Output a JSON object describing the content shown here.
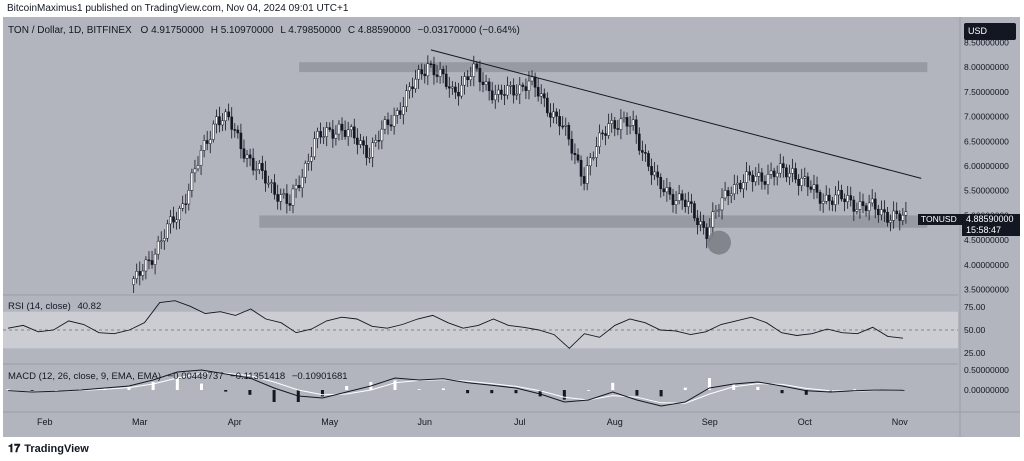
{
  "header": {
    "published": "BitcoinMaximus1 published on TradingView.com, Nov 04, 2024 09:01 UTC+1"
  },
  "symbol": {
    "name": "TON / Dollar, 1D, BITFINEX",
    "open": "O 4.91750000",
    "high": "H 5.10970000",
    "low": "L 4.79850000",
    "close": "C 4.88590000",
    "change": "−0.03170000 (−0.64%)"
  },
  "currency_button": "USD",
  "last_price": {
    "ticker": "TONUSD",
    "price": "4.88590000",
    "countdown": "15:58:47"
  },
  "footer": {
    "brand": "TradingView"
  },
  "colors": {
    "up": "#ffffff",
    "down": "#131722",
    "panel": "#b2b5be",
    "zone": "#8f9299",
    "text": "#131722"
  },
  "chart_data": [
    {
      "type": "candlestick",
      "x_labels": [
        "Feb",
        "Mar",
        "Apr",
        "May",
        "Jun",
        "Jul",
        "Aug",
        "Sep",
        "Oct",
        "Nov"
      ],
      "y_ticks": [
        "8.50000000",
        "8.00000000",
        "7.50000000",
        "7.00000000",
        "6.50000000",
        "6.00000000",
        "5.50000000",
        "5.00000000",
        "4.50000000",
        "4.00000000",
        "3.50000000"
      ],
      "ylim": [
        3.45,
        8.55
      ],
      "approx_closes": [
        {
          "month": "Mar",
          "x_day": 41,
          "value": 3.6
        },
        {
          "month": "Mar",
          "x_day": 49,
          "value": 4.4
        },
        {
          "month": "Mar",
          "x_day": 56,
          "value": 5.1
        },
        {
          "month": "Apr",
          "x_day": 68,
          "value": 7.0
        },
        {
          "month": "Apr",
          "x_day": 72,
          "value": 6.9
        },
        {
          "month": "Apr",
          "x_day": 80,
          "value": 6.0
        },
        {
          "month": "May",
          "x_day": 92,
          "value": 5.2
        },
        {
          "month": "May",
          "x_day": 100,
          "value": 6.5
        },
        {
          "month": "May",
          "x_day": 108,
          "value": 6.8
        },
        {
          "month": "May",
          "x_day": 118,
          "value": 6.3
        },
        {
          "month": "Jun",
          "x_day": 128,
          "value": 7.2
        },
        {
          "month": "Jun",
          "x_day": 137,
          "value": 8.1
        },
        {
          "month": "Jun",
          "x_day": 145,
          "value": 7.5
        },
        {
          "month": "Jul",
          "x_day": 152,
          "value": 7.9
        },
        {
          "month": "Jul",
          "x_day": 160,
          "value": 7.4
        },
        {
          "month": "Jul",
          "x_day": 170,
          "value": 7.7
        },
        {
          "month": "Jul",
          "x_day": 180,
          "value": 6.9
        },
        {
          "month": "Aug",
          "x_day": 188,
          "value": 5.8
        },
        {
          "month": "Aug",
          "x_day": 196,
          "value": 6.9
        },
        {
          "month": "Aug",
          "x_day": 204,
          "value": 6.8
        },
        {
          "month": "Aug",
          "x_day": 212,
          "value": 5.6
        },
        {
          "month": "Aug",
          "x_day": 220,
          "value": 5.3
        },
        {
          "month": "Sep",
          "x_day": 228,
          "value": 4.7
        },
        {
          "month": "Sep",
          "x_day": 236,
          "value": 5.6
        },
        {
          "month": "Sep",
          "x_day": 246,
          "value": 5.8
        },
        {
          "month": "Sep",
          "x_day": 256,
          "value": 5.9
        },
        {
          "month": "Oct",
          "x_day": 264,
          "value": 5.4
        },
        {
          "month": "Oct",
          "x_day": 274,
          "value": 5.3
        },
        {
          "month": "Oct",
          "x_day": 284,
          "value": 5.1
        },
        {
          "month": "Nov",
          "x_day": 293,
          "value": 4.9
        }
      ],
      "annotations": [
        {
          "type": "zone",
          "from": 7.9,
          "to": 8.1
        },
        {
          "type": "zone",
          "from": 4.75,
          "to": 5.0
        },
        {
          "type": "trendline",
          "from": {
            "x_day": 138,
            "value": 8.35
          },
          "to": {
            "x_day": 298,
            "value": 5.75
          }
        },
        {
          "type": "circle",
          "x_day": 232,
          "value": 4.45
        }
      ]
    },
    {
      "type": "line",
      "title": "RSI (14, close)",
      "last_value": "40.82",
      "y_ticks": [
        "75.00",
        "50.00",
        "25.00"
      ],
      "ylim": [
        15,
        85
      ],
      "band": [
        30,
        70
      ],
      "values": [
        52,
        55,
        48,
        50,
        60,
        56,
        47,
        46,
        50,
        58,
        80,
        82,
        76,
        68,
        70,
        66,
        73,
        62,
        58,
        47,
        51,
        60,
        64,
        62,
        54,
        52,
        56,
        62,
        66,
        58,
        52,
        55,
        62,
        55,
        53,
        50,
        45,
        30,
        46,
        42,
        55,
        62,
        58,
        50,
        49,
        45,
        48,
        56,
        60,
        64,
        58,
        47,
        44,
        46,
        51,
        47,
        46,
        53,
        43,
        41
      ]
    },
    {
      "type": "line",
      "title": "MACD (12, 26, close, 9, EMA, EMA)",
      "values_shown": [
        "−0.00449737",
        "−0.11351418",
        "−0.10901681"
      ],
      "y_ticks": [
        "0.50000000",
        "0.00000000"
      ],
      "ylim": [
        -0.5,
        0.6
      ],
      "series": [
        {
          "values": [
            -0.02,
            -0.05,
            -0.03,
            0.0,
            0.05,
            0.1,
            0.25,
            0.45,
            0.5,
            0.4,
            0.3,
            0.05,
            -0.15,
            -0.2,
            -0.05,
            0.1,
            0.3,
            0.25,
            0.28,
            0.18,
            0.12,
            0.05,
            -0.1,
            -0.3,
            -0.25,
            -0.05,
            -0.25,
            -0.4,
            -0.3,
            0.05,
            0.15,
            0.2,
            0.1,
            -0.02,
            -0.05,
            -0.02,
            0.0,
            -0.005
          ]
        },
        {
          "values": [
            -0.03,
            -0.04,
            -0.03,
            -0.01,
            0.02,
            0.06,
            0.15,
            0.3,
            0.42,
            0.42,
            0.36,
            0.2,
            0.0,
            -0.12,
            -0.1,
            0.0,
            0.18,
            0.24,
            0.26,
            0.22,
            0.16,
            0.09,
            -0.02,
            -0.18,
            -0.25,
            -0.14,
            -0.18,
            -0.32,
            -0.33,
            -0.1,
            0.08,
            0.16,
            0.14,
            0.04,
            -0.02,
            -0.03,
            -0.01,
            -0.0045
          ]
        }
      ]
    }
  ]
}
